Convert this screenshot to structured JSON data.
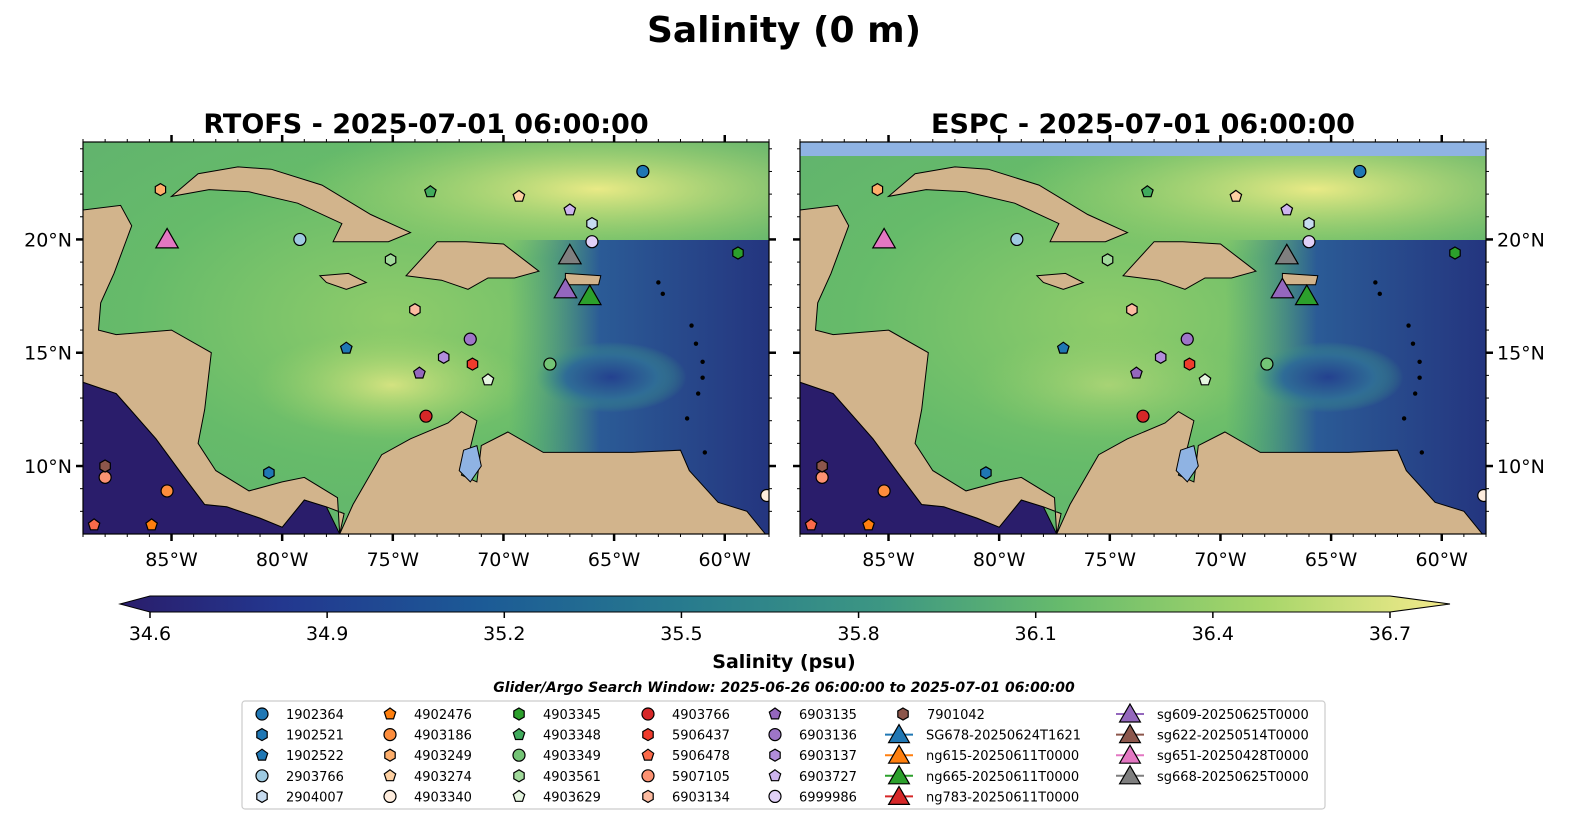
{
  "title": "Salinity (0 m)",
  "panels": [
    {
      "title": "RTOFS - 2025-07-01 06:00:00",
      "model": "RTOFS"
    },
    {
      "title": "ESPC - 2025-07-01 06:00:00",
      "model": "ESPC"
    }
  ],
  "axes": {
    "lon_ticks": [
      "85°W",
      "80°W",
      "75°W",
      "70°W",
      "65°W",
      "60°W"
    ],
    "lat_ticks": [
      "20°N",
      "15°N",
      "10°N"
    ]
  },
  "colorbar": {
    "label": "Salinity (psu)",
    "ticks": [
      "34.6",
      "34.9",
      "35.2",
      "35.5",
      "35.8",
      "36.1",
      "36.4",
      "36.7"
    ],
    "min": 34.6,
    "max": 36.7,
    "extend": "both"
  },
  "search_window": "Glider/Argo Search Window: 2025-06-26 06:00:00 to 2025-07-01 06:00:00",
  "legend": {
    "columns": [
      [
        {
          "label": "1902364",
          "marker": "circle",
          "color": "#1f77b4"
        },
        {
          "label": "1902521",
          "marker": "hexagon",
          "color": "#1f77b4"
        },
        {
          "label": "1902522",
          "marker": "pentagon",
          "color": "#1f77b4"
        },
        {
          "label": "2903766",
          "marker": "circle",
          "color": "#9ecae1"
        },
        {
          "label": "2904007",
          "marker": "hexagon",
          "color": "#c6dbef"
        }
      ],
      [
        {
          "label": "4902476",
          "marker": "pentagon",
          "color": "#ff7f0e"
        },
        {
          "label": "4903186",
          "marker": "circle",
          "color": "#fd8d3c"
        },
        {
          "label": "4903249",
          "marker": "hexagon",
          "color": "#fdae6b"
        },
        {
          "label": "4903274",
          "marker": "pentagon",
          "color": "#fdd0a2"
        },
        {
          "label": "4903340",
          "marker": "circle",
          "color": "#feedde"
        }
      ],
      [
        {
          "label": "4903345",
          "marker": "hexagon",
          "color": "#2ca02c"
        },
        {
          "label": "4903348",
          "marker": "pentagon",
          "color": "#41ab5d"
        },
        {
          "label": "4903349",
          "marker": "circle",
          "color": "#74c476"
        },
        {
          "label": "4903561",
          "marker": "hexagon",
          "color": "#a1d99b"
        },
        {
          "label": "4903629",
          "marker": "pentagon",
          "color": "#e5f5e0"
        }
      ],
      [
        {
          "label": "4903766",
          "marker": "circle",
          "color": "#d62728"
        },
        {
          "label": "5906437",
          "marker": "hexagon",
          "color": "#ef3b2c"
        },
        {
          "label": "5906478",
          "marker": "pentagon",
          "color": "#fb6a4a"
        },
        {
          "label": "5907105",
          "marker": "circle",
          "color": "#fc9272"
        },
        {
          "label": "6903134",
          "marker": "hexagon",
          "color": "#fcbba1"
        }
      ],
      [
        {
          "label": "6903135",
          "marker": "pentagon",
          "color": "#9467bd"
        },
        {
          "label": "6903136",
          "marker": "circle",
          "color": "#9e75c8"
        },
        {
          "label": "6903137",
          "marker": "hexagon",
          "color": "#b28ddb"
        },
        {
          "label": "6903727",
          "marker": "pentagon",
          "color": "#cdb4ee"
        },
        {
          "label": "6999986",
          "marker": "circle",
          "color": "#e0d0f7"
        }
      ],
      [
        {
          "label": "7901042",
          "marker": "hexagon",
          "color": "#8c564b"
        },
        {
          "label": "SG678-20250624T1621",
          "marker": "triangle-line",
          "color": "#1f77b4"
        },
        {
          "label": "ng615-20250611T0000",
          "marker": "triangle-line",
          "color": "#ff7f0e"
        },
        {
          "label": "ng665-20250611T0000",
          "marker": "triangle-line",
          "color": "#2ca02c"
        },
        {
          "label": "ng783-20250611T0000",
          "marker": "triangle-line",
          "color": "#d62728"
        }
      ],
      [
        {
          "label": "sg609-20250625T0000",
          "marker": "triangle-line",
          "color": "#9467bd"
        },
        {
          "label": "sg622-20250514T0000",
          "marker": "triangle-line",
          "color": "#8c564b"
        },
        {
          "label": "sg651-20250428T0000",
          "marker": "triangle-line",
          "color": "#e377c2"
        },
        {
          "label": "sg668-20250625T0000",
          "marker": "triangle-line",
          "color": "#7f7f7f"
        }
      ]
    ]
  },
  "chart_data": {
    "type": "scatter",
    "subtype": "map",
    "title": "Salinity (0 m)",
    "xlim": [
      -89,
      -58
    ],
    "ylim": [
      7,
      24.3
    ],
    "field": "sea surface salinity (psu)",
    "points": [
      {
        "id": "1902364",
        "lon": -63.7,
        "lat": 23.0,
        "marker": "circle",
        "color": "#1f77b4"
      },
      {
        "id": "4902476",
        "lon": -85.9,
        "lat": 7.4,
        "marker": "pentagon",
        "color": "#ff7f0e"
      },
      {
        "id": "4903186",
        "lon": -85.2,
        "lat": 8.9,
        "marker": "circle",
        "color": "#fd8d3c"
      },
      {
        "id": "4903249",
        "lon": -85.5,
        "lat": 22.2,
        "marker": "hexagon",
        "color": "#fdae6b"
      },
      {
        "id": "4903274",
        "lon": -69.3,
        "lat": 21.9,
        "marker": "pentagon",
        "color": "#fdd0a2"
      },
      {
        "id": "4903340",
        "lon": -58.1,
        "lat": 8.7,
        "marker": "circle",
        "color": "#feedde"
      },
      {
        "id": "4903345",
        "lon": -59.4,
        "lat": 19.4,
        "marker": "hexagon",
        "color": "#2ca02c"
      },
      {
        "id": "4903348",
        "lon": -73.3,
        "lat": 22.1,
        "marker": "pentagon",
        "color": "#41ab5d"
      },
      {
        "id": "4903349",
        "lon": -67.9,
        "lat": 14.5,
        "marker": "circle",
        "color": "#74c476"
      },
      {
        "id": "4903561",
        "lon": -75.1,
        "lat": 19.1,
        "marker": "hexagon",
        "color": "#a1d99b"
      },
      {
        "id": "4903629",
        "lon": -70.7,
        "lat": 13.8,
        "marker": "pentagon",
        "color": "#e5f5e0"
      },
      {
        "id": "4903766",
        "lon": -73.5,
        "lat": 12.2,
        "marker": "circle",
        "color": "#d62728"
      },
      {
        "id": "5906437",
        "lon": -71.4,
        "lat": 14.5,
        "marker": "hexagon",
        "color": "#ef3b2c"
      },
      {
        "id": "5906478",
        "lon": -88.5,
        "lat": 7.4,
        "marker": "pentagon",
        "color": "#fb6a4a"
      },
      {
        "id": "5907105",
        "lon": -88.0,
        "lat": 9.5,
        "marker": "circle",
        "color": "#fc9272"
      },
      {
        "id": "6903134",
        "lon": -74.0,
        "lat": 16.9,
        "marker": "hexagon",
        "color": "#fcbba1"
      },
      {
        "id": "6903135",
        "lon": -73.8,
        "lat": 14.1,
        "marker": "pentagon",
        "color": "#9467bd"
      },
      {
        "id": "6903136",
        "lon": -71.5,
        "lat": 15.6,
        "marker": "circle",
        "color": "#9e75c8"
      },
      {
        "id": "6903137",
        "lon": -72.7,
        "lat": 14.8,
        "marker": "hexagon",
        "color": "#b28ddb"
      },
      {
        "id": "6903727",
        "lon": -67.0,
        "lat": 21.3,
        "marker": "pentagon",
        "color": "#cdb4ee"
      },
      {
        "id": "6999986",
        "lon": -66.0,
        "lat": 19.9,
        "marker": "circle",
        "color": "#e0d0f7"
      },
      {
        "id": "7901042",
        "lon": -88.0,
        "lat": 10.0,
        "marker": "hexagon",
        "color": "#8c564b"
      },
      {
        "id": "1902522",
        "lon": -77.1,
        "lat": 15.2,
        "marker": "pentagon",
        "color": "#1f77b4"
      },
      {
        "id": "2903766",
        "lon": -79.2,
        "lat": 20.0,
        "marker": "circle",
        "color": "#9ecae1"
      },
      {
        "id": "2904007",
        "lon": -66.0,
        "lat": 20.7,
        "marker": "hexagon",
        "color": "#c6dbef"
      },
      {
        "id": "1902521",
        "lon": -80.6,
        "lat": 9.7,
        "marker": "hexagon",
        "color": "#1f77b4"
      },
      {
        "id": "sg651-20250428T0000",
        "lon": -85.2,
        "lat": 20.0,
        "marker": "triangle",
        "color": "#e377c2"
      },
      {
        "id": "sg668-20250625T0000",
        "lon": -67.0,
        "lat": 19.3,
        "marker": "triangle",
        "color": "#7f7f7f"
      },
      {
        "id": "sg609-20250625T0000",
        "lon": -67.2,
        "lat": 17.8,
        "marker": "triangle",
        "color": "#9467bd"
      },
      {
        "id": "ng665-20250611T0000",
        "lon": -66.1,
        "lat": 17.5,
        "marker": "triangle",
        "color": "#2ca02c"
      }
    ]
  }
}
